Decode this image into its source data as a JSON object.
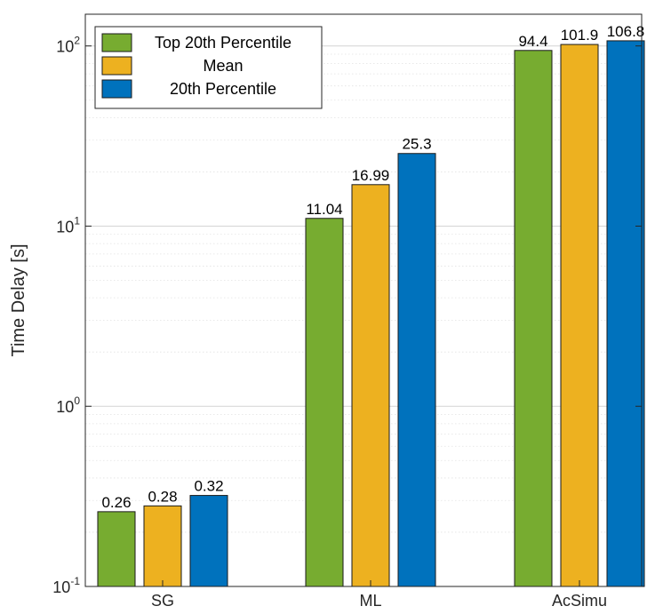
{
  "chart_data": {
    "type": "bar",
    "yscale": "log",
    "ylim": [
      0.1,
      150
    ],
    "ylabel": "Time Delay [s]",
    "xlabel": "",
    "title": "",
    "grid": true,
    "legend_position": "top-left",
    "categories": [
      "SG",
      "ML",
      "AcSimu"
    ],
    "yticks": [
      {
        "base": "10",
        "exp": "-1"
      },
      {
        "base": "10",
        "exp": "0"
      },
      {
        "base": "10",
        "exp": "1"
      },
      {
        "base": "10",
        "exp": "2"
      }
    ],
    "series": [
      {
        "name": "Top 20th Percentile",
        "color": "#77ac30",
        "values": [
          0.26,
          11.04,
          94.4
        ],
        "labels": [
          "0.26",
          "11.04",
          "94.4"
        ]
      },
      {
        "name": "Mean",
        "color": "#edb120",
        "values": [
          0.28,
          16.99,
          101.9
        ],
        "labels": [
          "0.28",
          "16.99",
          "101.9"
        ]
      },
      {
        "name": "20th Percentile",
        "color": "#0072bd",
        "values": [
          0.32,
          25.3,
          106.8
        ],
        "labels": [
          "0.32",
          "25.3",
          "106.8"
        ]
      }
    ]
  }
}
